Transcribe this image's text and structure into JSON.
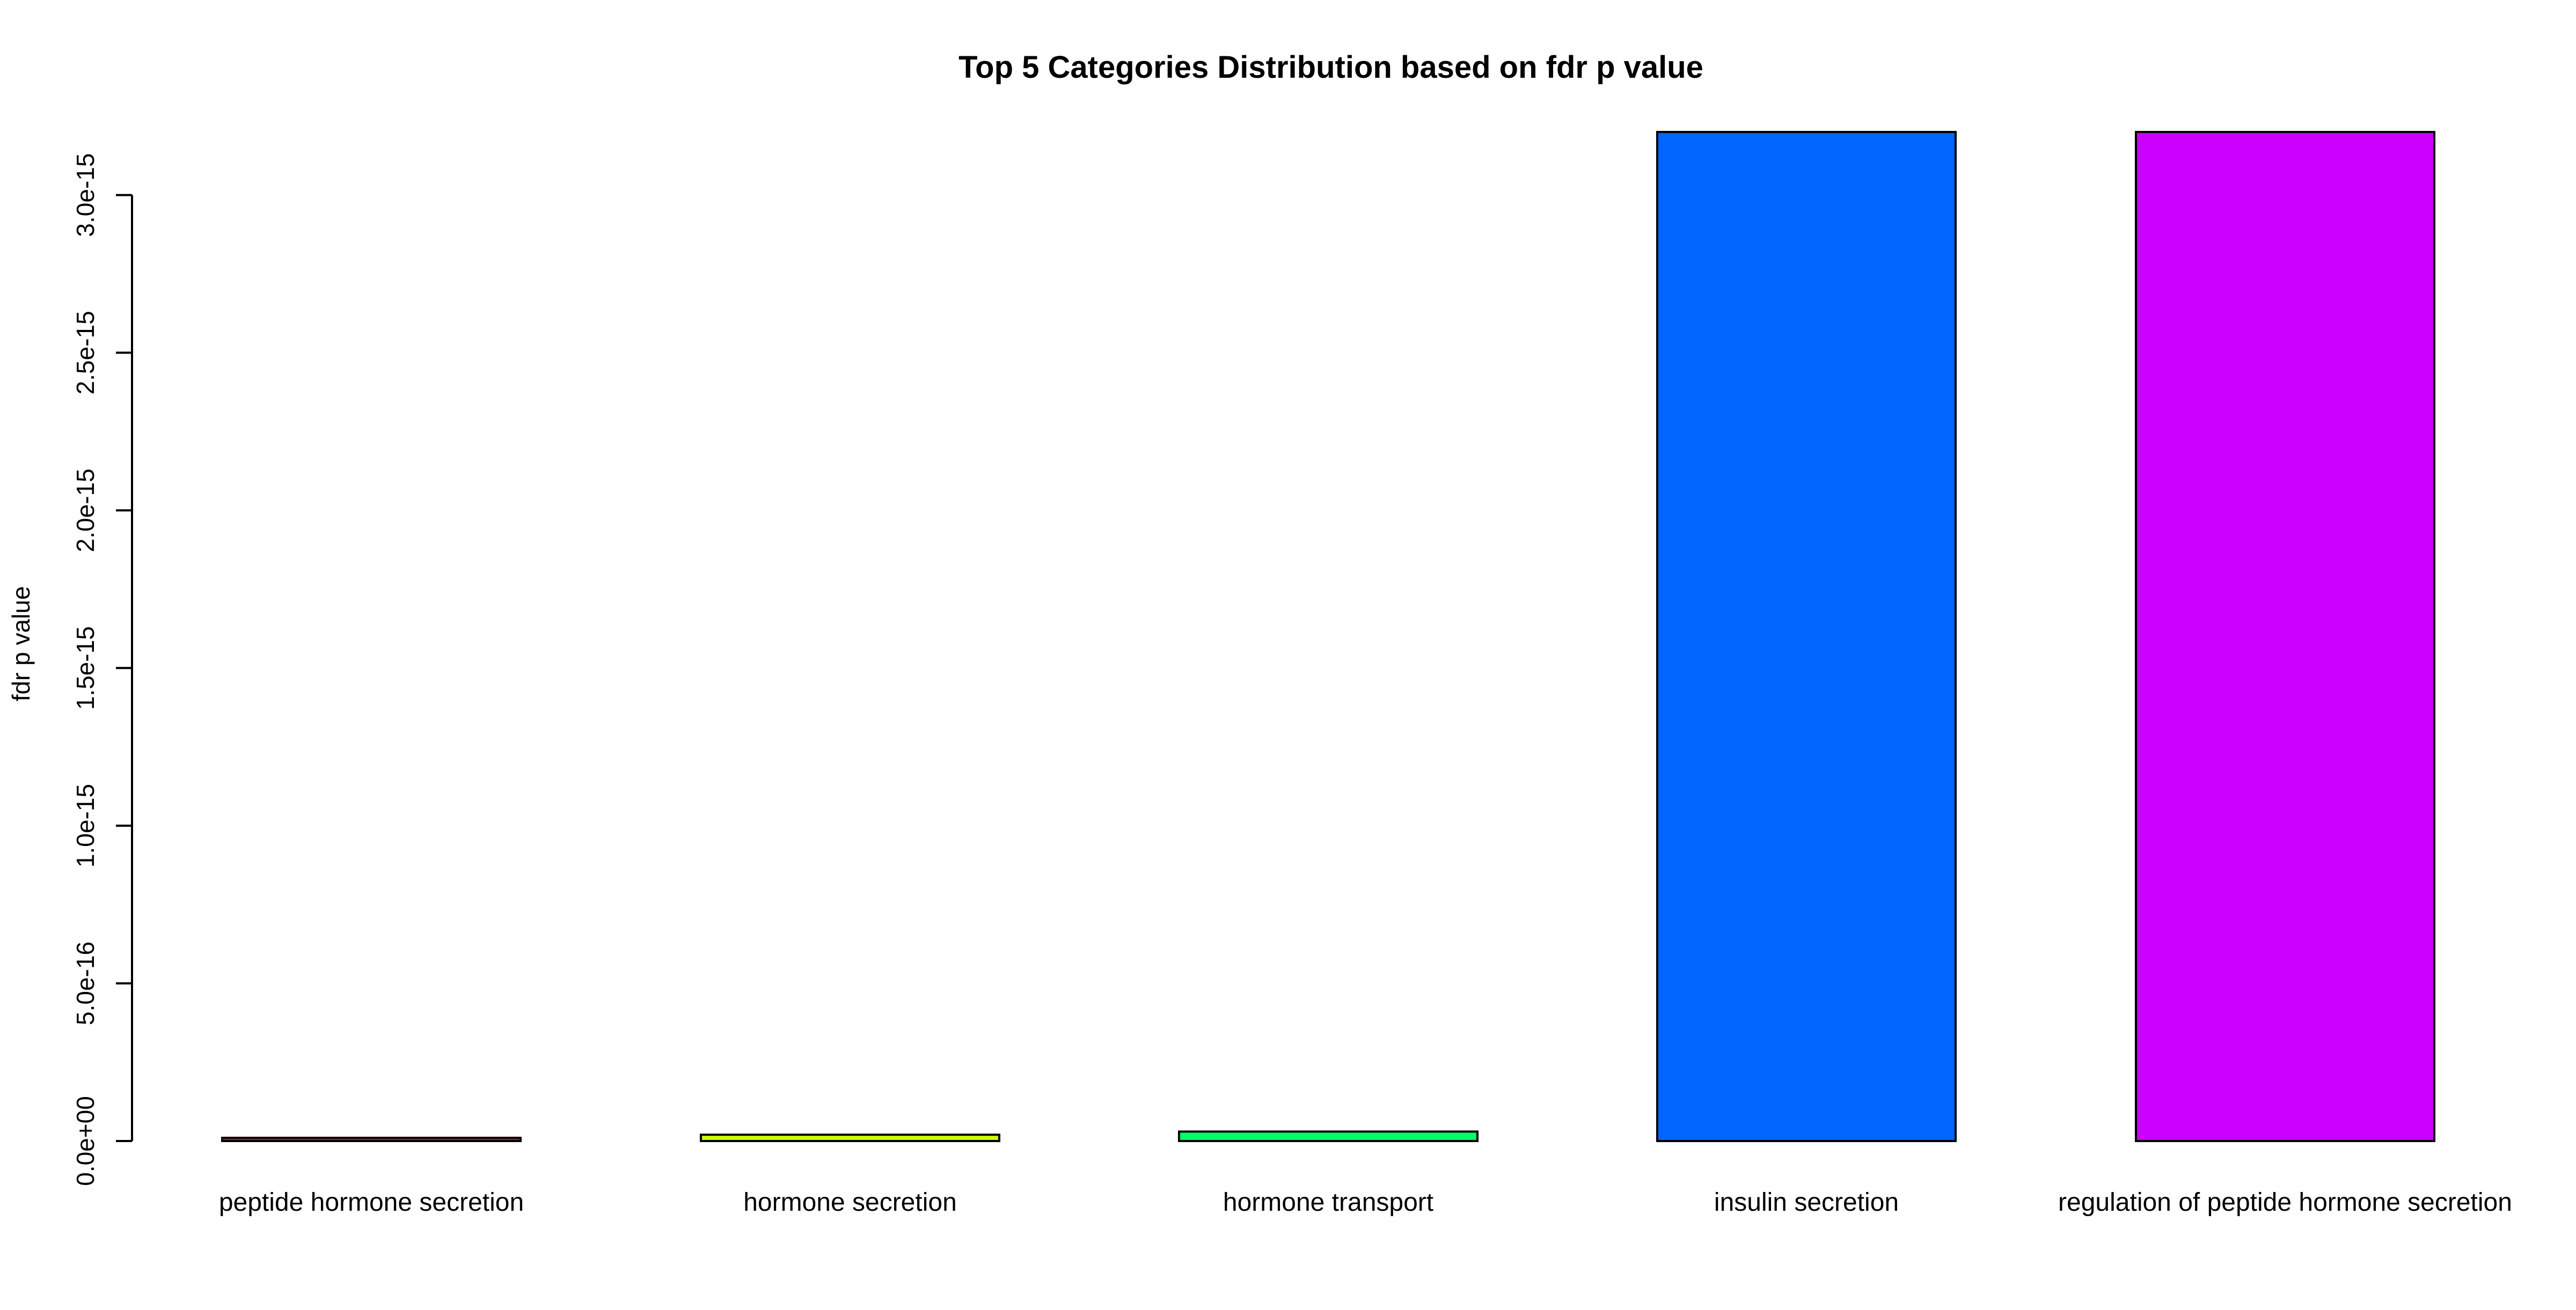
{
  "chart_data": {
    "type": "bar",
    "title": "Top 5 Categories Distribution based on fdr p value",
    "xlabel": "",
    "ylabel": "fdr p value",
    "categories": [
      "peptide hormone secretion",
      "hormone secretion",
      "hormone transport",
      "insulin secretion",
      "regulation of peptide hormone secretion"
    ],
    "values": [
      1e-17,
      2e-17,
      3e-17,
      3.2e-15,
      3.2e-15
    ],
    "colors": [
      "#FF0000",
      "#CCFF00",
      "#00FF66",
      "#0066FF",
      "#CC00FF"
    ],
    "yticks": [
      0,
      5e-16,
      1e-15,
      1.5e-15,
      2e-15,
      2.5e-15,
      3e-15
    ],
    "ytick_labels": [
      "0.0e+00",
      "5.0e-16",
      "1.0e-15",
      "1.5e-15",
      "2.0e-15",
      "2.5e-15",
      "3.0e-15"
    ],
    "ylim": [
      0,
      3.2e-15
    ],
    "grid": false,
    "legend": "none"
  }
}
